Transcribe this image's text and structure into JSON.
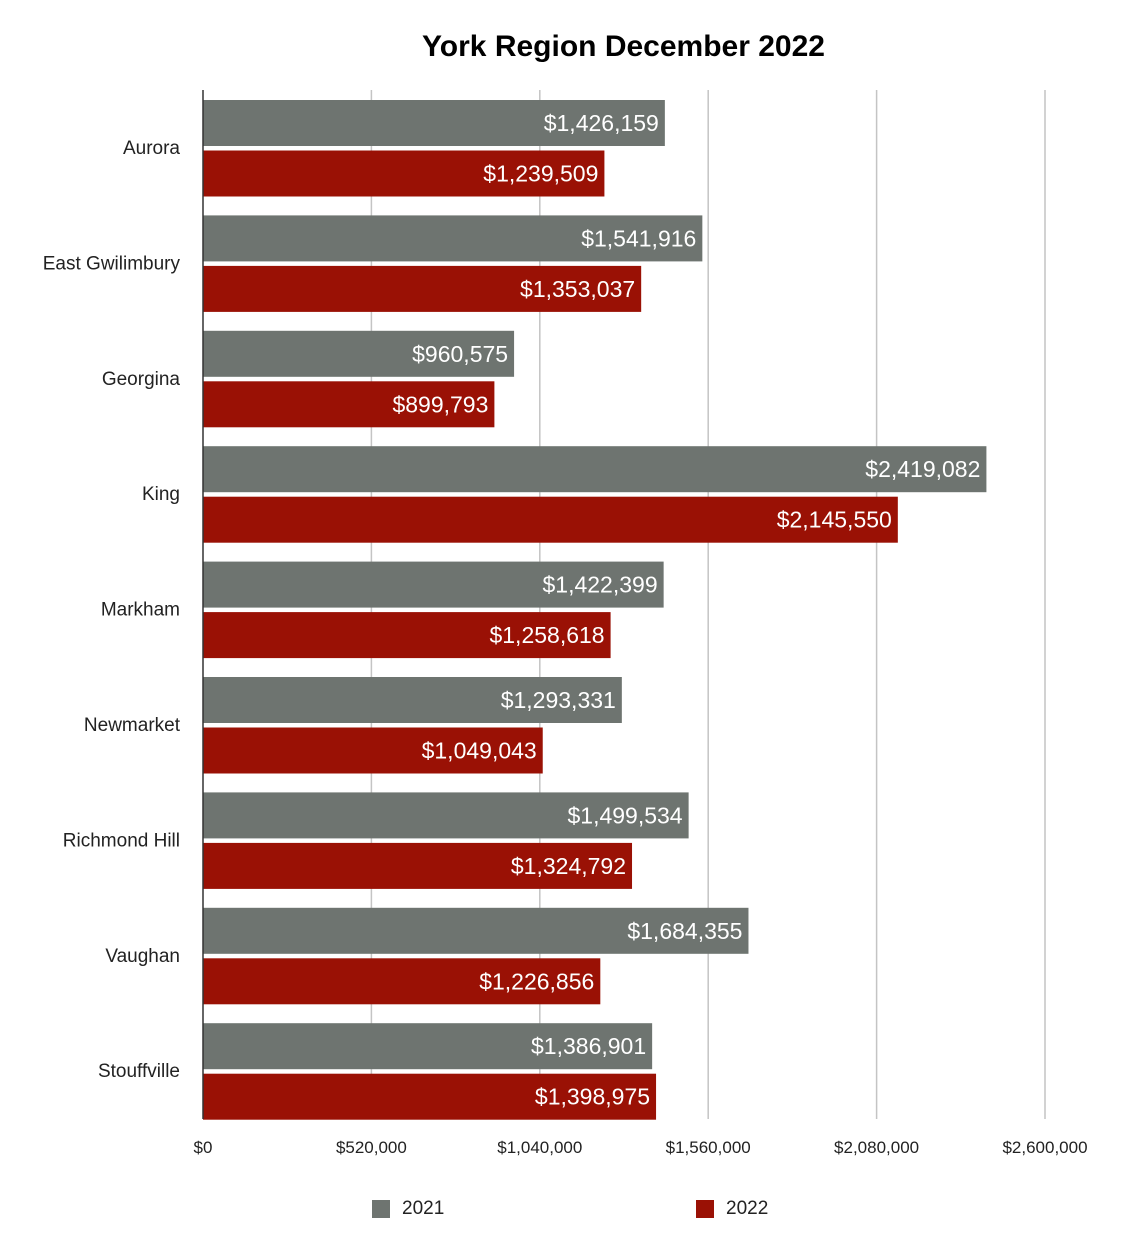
{
  "chart_data": {
    "type": "bar",
    "orientation": "horizontal",
    "title": "York Region December 2022",
    "categories": [
      "Aurora",
      "East Gwilimbury",
      "Georgina",
      "King",
      "Markham",
      "Newmarket",
      "Richmond Hill",
      "Vaughan",
      "Stouffville"
    ],
    "series": [
      {
        "name": "2021",
        "color": "#6e7470",
        "values": [
          1426159,
          1541916,
          960575,
          2419082,
          1422399,
          1293331,
          1499534,
          1684355,
          1386901
        ],
        "labels": [
          "$1,426,159",
          "$1,541,916",
          "$960,575",
          "$2,419,082",
          "$1,422,399",
          "$1,293,331",
          "$1,499,534",
          "$1,684,355",
          "$1,386,901"
        ]
      },
      {
        "name": "2022",
        "color": "#9a1105",
        "values": [
          1239509,
          1353037,
          899793,
          2145550,
          1258618,
          1049043,
          1324792,
          1226856,
          1398975
        ],
        "labels": [
          "$1,239,509",
          "$1,353,037",
          "$899,793",
          "$2,145,550",
          "$1,258,618",
          "$1,049,043",
          "$1,324,792",
          "$1,226,856",
          "$1,398,975"
        ]
      }
    ],
    "xlim": [
      0,
      2600000
    ],
    "x_ticks": [
      0,
      520000,
      1040000,
      1560000,
      2080000,
      2600000
    ],
    "x_tick_labels": [
      "$0",
      "$520,000",
      "$1,040,000",
      "$1,560,000",
      "$2,080,000",
      "$2,600,000"
    ],
    "grid": true,
    "legend_position": "bottom"
  }
}
